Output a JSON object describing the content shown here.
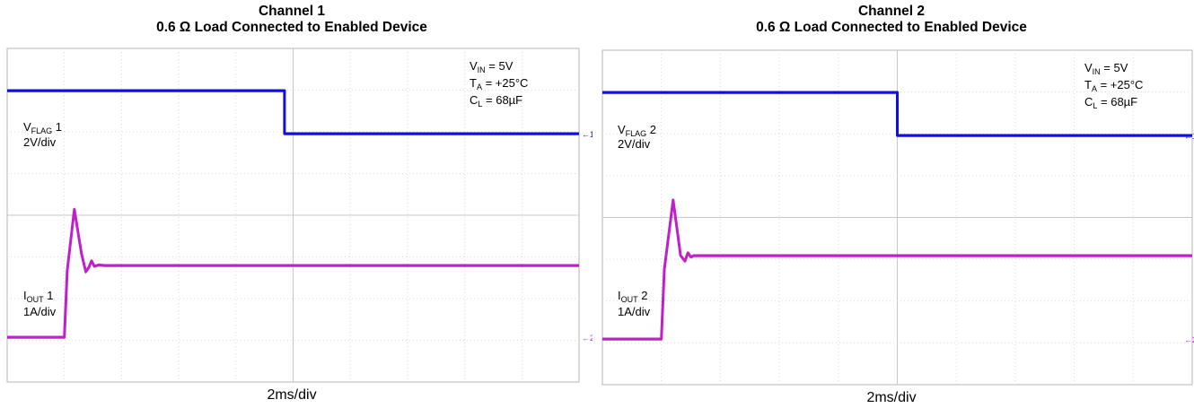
{
  "chart_data": [
    {
      "type": "line",
      "title": "Channel 1",
      "subtitle": "0.6 Ω Load Connected to Enabled Device",
      "xlabel": "2ms/div",
      "x_unit": "ms",
      "xlim": [
        0,
        20
      ],
      "x_divisions": 10,
      "y_divisions": 8,
      "grid": true,
      "annotations": [
        {
          "main": "V",
          "sub": "IN",
          "rest": " = 5V"
        },
        {
          "main": "T",
          "sub": "A",
          "rest": " = +25°C"
        },
        {
          "main": "C",
          "sub": "L",
          "rest": " = 68µF"
        }
      ],
      "series": [
        {
          "label_main": "V",
          "label_sub": "FLAG",
          "label_rest": " 1",
          "scale": "2V/div",
          "color": "#1010d8",
          "marker": "1",
          "x": [
            0,
            9.7,
            9.7,
            20
          ],
          "y": [
            5.0,
            5.0,
            0.0,
            0.0
          ]
        },
        {
          "label_main": "I",
          "label_sub": "OUT",
          "label_rest": " 1",
          "scale": "1A/div",
          "color": "#c020c8",
          "marker": "2",
          "x": [
            0,
            2.0,
            2.1,
            2.35,
            2.6,
            2.75,
            2.85,
            2.95,
            3.05,
            3.2,
            3.4,
            20
          ],
          "y": [
            0.0,
            0.0,
            2.4,
            4.6,
            3.0,
            2.35,
            2.5,
            2.75,
            2.55,
            2.6,
            2.58,
            2.58
          ]
        }
      ]
    },
    {
      "type": "line",
      "title": "Channel 2",
      "subtitle": "0.6 Ω Load Connected to Enabled Device",
      "xlabel": "2ms/div",
      "x_unit": "ms",
      "xlim": [
        0,
        20
      ],
      "x_divisions": 10,
      "y_divisions": 8,
      "grid": true,
      "annotations": [
        {
          "main": "V",
          "sub": "IN",
          "rest": " = 5V"
        },
        {
          "main": "T",
          "sub": "A",
          "rest": " = +25°C"
        },
        {
          "main": "C",
          "sub": "L",
          "rest": " = 68µF"
        }
      ],
      "series": [
        {
          "label_main": "V",
          "label_sub": "FLAG",
          "label_rest": " 2",
          "scale": "2V/div",
          "color": "#1010d8",
          "marker": "1",
          "x": [
            0,
            10.0,
            10.0,
            20
          ],
          "y": [
            5.0,
            5.0,
            0.0,
            0.0
          ]
        },
        {
          "label_main": "I",
          "label_sub": "OUT",
          "label_rest": " 2",
          "scale": "1A/div",
          "color": "#c020c8",
          "marker": "2",
          "x": [
            0,
            2.0,
            2.1,
            2.4,
            2.65,
            2.8,
            2.9,
            3.0,
            3.1,
            3.3,
            3.5,
            20
          ],
          "y": [
            0.0,
            0.0,
            2.5,
            5.0,
            3.0,
            2.8,
            3.1,
            2.95,
            3.0,
            3.0,
            3.0,
            3.0
          ]
        }
      ]
    }
  ]
}
